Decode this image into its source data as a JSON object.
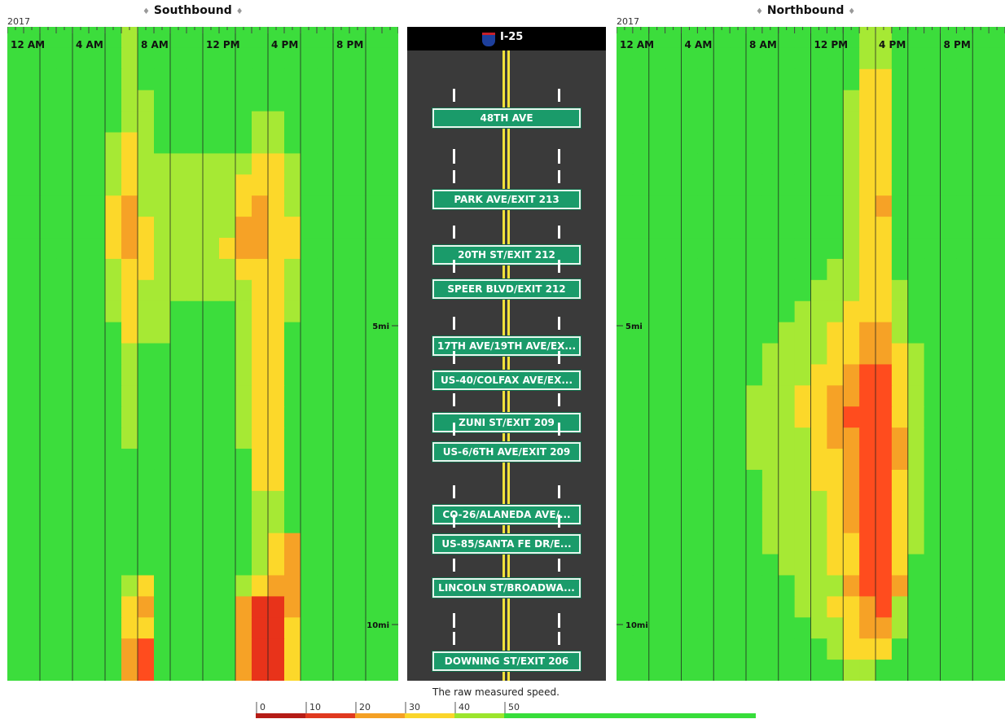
{
  "chart_data": {
    "type": "heatmap",
    "road": "I-25",
    "year": "2017",
    "caption": "The raw measured speed.",
    "time_ticks": [
      "12 AM",
      "4 AM",
      "8 AM",
      "12 PM",
      "4 PM",
      "8 PM"
    ],
    "distance_ticks": [
      {
        "label": "5mi",
        "value": 5
      },
      {
        "label": "10mi",
        "value": 10
      }
    ],
    "speed_bins": [
      {
        "label": "0",
        "color": "#b51c16"
      },
      {
        "label": "10",
        "color": "#e0391f"
      },
      {
        "label": "20",
        "color": "#f4a024"
      },
      {
        "label": "30",
        "color": "#fad52a"
      },
      {
        "label": "40",
        "color": "#9ce52c"
      },
      {
        "label": "50",
        "color": "#37dd3a"
      }
    ],
    "palette": {
      "G": "#3cdd3c",
      "L": "#a6e934",
      "Y": "#fcd82a",
      "O": "#f6a226",
      "R": "#ff4c1e",
      "D": "#e8331a"
    },
    "exits": [
      "48TH AVE",
      "PARK AVE/EXIT 213",
      "20TH ST/EXIT 212",
      "SPEER BLVD/EXIT 212",
      "17TH AVE/19TH AVE/EX...",
      "US-40/COLFAX AVE/EX...",
      "ZUNI ST/EXIT 209",
      "US-6/6TH AVE/EXIT 209",
      "CO-26/ALANEDA AVE/...",
      "US-85/SANTA FE DR/E...",
      "LINCOLN ST/BROADWA...",
      "DOWNING ST/EXIT 206"
    ],
    "panels": [
      {
        "name": "Southbound",
        "rows": [
          "GGGGGGGLGGGGGGGGGGGGGGGG",
          "GGGGGGGLGGGGGGGGGGGGGGGG",
          "GGGGGGGLGGGGGGGGGGGGGGGG",
          "GGGGGGGLLGGGGGGGGGGGGGGG",
          "GGGGGGGLLGGGGGGLLGGGGGGG",
          "GGGGGGLYLGGGGGGLLGGGGGGG",
          "GGGGGGLYLLLLLLLYYLGGGGGG",
          "GGGGGGLYLLLLLLYYYLGGGGGG",
          "GGGGGGYOLLLLLLYOYLGGGGGG",
          "GGGGGGYOYLLLLLOOYYGGGGGG",
          "GGGGGGYOYLLLLYOOYYGGGGGG",
          "GGGGGGLYYLLLLLYYYLGGGGGG",
          "GGGGGGLYLLLLLLLYYLGGGGGG",
          "GGGGGGLYLLGGGGLYYLGGGGGG",
          "GGGGGGGYLLGGGGLYYGGGGGGG",
          "GGGGGGGLGGGGGGLYYGGGGGGG",
          "GGGGGGGLGGGGGGLYYGGGGGGG",
          "GGGGGGGLGGGGGGLYYGGGGGGG",
          "GGGGGGGLGGGGGGLYYGGGGGGG",
          "GGGGGGGLGGGGGGLYYGGGGGGG",
          "GGGGGGGGGGGGGGGYYGGGGGGG",
          "GGGGGGGGGGGGGGGYYGGGGGGG",
          "GGGGGGGGGGGGGGGLLGGGGGGG",
          "GGGGGGGGGGGGGGGLLGGGGGGG",
          "GGGGGGGGGGGGGGGLYOGGGGGG",
          "GGGGGGGGGGGGGGGLYOGGGGGG",
          "GGGGGGGLYGGGGGLYOOGGGGGG",
          "GGGGGGGYOGGGGGODDOGGGGGG",
          "GGGGGGGYYGGGGGODDYGGGGGG",
          "GGGGGGGORGGGGGODDYGGGGGG",
          "GGGGGGGORGGGGGODDYGGGGGG"
        ]
      },
      {
        "name": "Northbound",
        "rows": [
          "GGGGGGGGGGGGGGGLLGGGGGGG",
          "GGGGGGGGGGGGGGGLLGGGGGGG",
          "GGGGGGGGGGGGGGGYYGGGGGGG",
          "GGGGGGGGGGGGGGLYYGGGGGGG",
          "GGGGGGGGGGGGGGLYYGGGGGGG",
          "GGGGGGGGGGGGGGLYYGGGGGGG",
          "GGGGGGGGGGGGGGLYYGGGGGGG",
          "GGGGGGGGGGGGGGLYYGGGGGGG",
          "GGGGGGGGGGGGGGLYOGGGGGGG",
          "GGGGGGGGGGGGGGLYYGGGGGGG",
          "GGGGGGGGGGGGGGLYYGGGGGGG",
          "GGGGGGGGGGGGGLLYYGGGGGGG",
          "GGGGGGGGGGGGLLLYYLGGGGGG",
          "GGGGGGGGGGGLLLYYYLGGGGGG",
          "GGGGGGGGGGLLLYYOOLGGGGGG",
          "GGGGGGGGGLLLLYYOOYLGGGGG",
          "GGGGGGGGGLLLYYORRYLGGGGG",
          "GGGGGGGGLLLYYOORRYLGGGGG",
          "GGGGGGGGLLLYYORRRYLGGGGG",
          "GGGGGGGGLLLLYOORROLGGGGG",
          "GGGGGGGGLLLLYYORROLGGGGG",
          "GGGGGGGGGLLLYYORRYLGGGGG",
          "GGGGGGGGGLLLLYORRYLGGGGG",
          "GGGGGGGGGLLLLYORRYLGGGGG",
          "GGGGGGGGGLLLLYYRRYLGGGGG",
          "GGGGGGGGGGLLLYYRRYGGGGGG",
          "GGGGGGGGGGGLLLORROGGGGGG",
          "GGGGGGGGGGGLLYYORLGGGGGG",
          "GGGGGGGGGGGGLLYOOLGGGGGG",
          "GGGGGGGGGGGGGLYYYGGGGGGG",
          "GGGGGGGGGGGGGGLLGGGGGGGG"
        ]
      }
    ]
  }
}
